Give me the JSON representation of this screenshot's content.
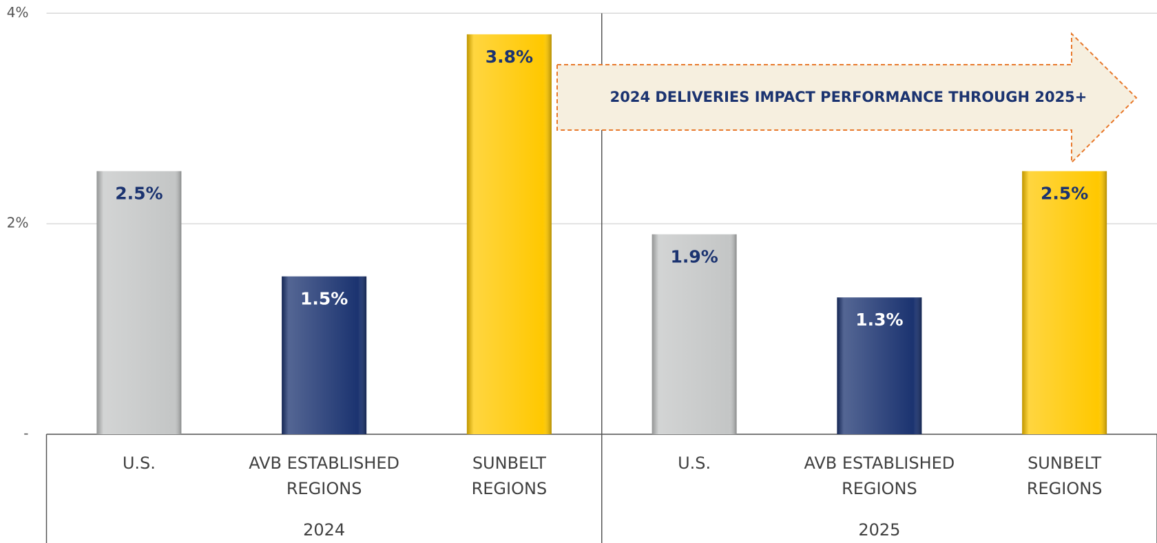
{
  "chart_data": {
    "type": "bar",
    "categories": [
      [
        "U.S."
      ],
      [
        "AVB ESTABLISHED",
        "REGIONS"
      ],
      [
        "SUNBELT",
        "REGIONS"
      ],
      [
        "U.S."
      ],
      [
        "AVB ESTABLISHED",
        "REGIONS"
      ],
      [
        "SUNBELT",
        "REGIONS"
      ]
    ],
    "groups": [
      "2024",
      "2025"
    ],
    "values": [
      2.5,
      1.5,
      3.8,
      1.9,
      1.3,
      2.5
    ],
    "value_labels": [
      "2.5%",
      "1.5%",
      "3.8%",
      "1.9%",
      "1.3%",
      "2.5%"
    ],
    "colors": [
      "#c4c6c6",
      "#1b3370",
      "#ffc800",
      "#c4c6c6",
      "#1b3370",
      "#ffc800"
    ],
    "label_colors": [
      "#1b3370",
      "#ffffff",
      "#1b3370",
      "#1b3370",
      "#ffffff",
      "#1b3370"
    ],
    "ylim": [
      0,
      4
    ],
    "yticks": [
      {
        "value": 0,
        "label": "-"
      },
      {
        "value": 2,
        "label": "2%"
      },
      {
        "value": 4,
        "label": "4%"
      }
    ],
    "grid": true,
    "annotation": "2024 DELIVERIES IMPACT PERFORMANCE THROUGH 2025+"
  }
}
